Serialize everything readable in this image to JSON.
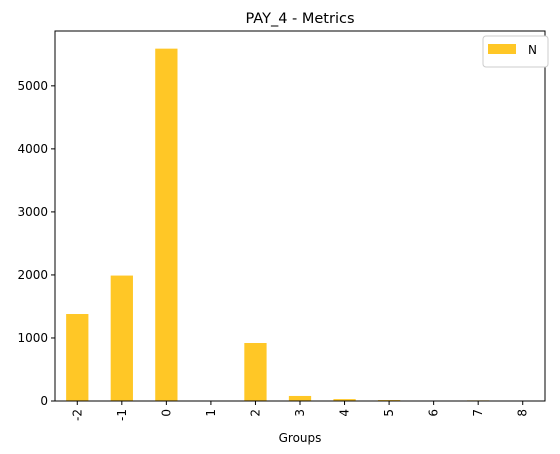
{
  "chart_data": {
    "type": "bar",
    "title": "PAY_4 - Metrics",
    "xlabel": "Groups",
    "ylabel": "",
    "categories": [
      "-2",
      "-1",
      "0",
      "1",
      "2",
      "3",
      "4",
      "5",
      "6",
      "7",
      "8"
    ],
    "series": [
      {
        "name": "N",
        "color": "#ffc726",
        "values": [
          1380,
          1990,
          5590,
          1,
          920,
          80,
          30,
          15,
          2,
          10,
          2
        ]
      }
    ],
    "ylim": [
      0,
      5870
    ],
    "yticks": [
      0,
      1000,
      2000,
      3000,
      4000,
      5000
    ],
    "ytick_labels": [
      "0",
      "1000",
      "2000",
      "3000",
      "4000",
      "5000"
    ],
    "grid": false,
    "legend_position": "top-right"
  }
}
